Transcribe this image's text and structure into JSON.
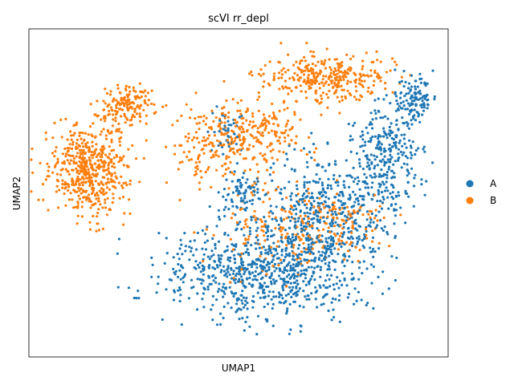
{
  "chart_data": {
    "type": "scatter",
    "title": "scVI rr_depl",
    "xlabel": "UMAP1",
    "ylabel": "UMAP2",
    "xlim": [
      -6,
      8
    ],
    "ylim": [
      -6,
      6
    ],
    "grid": false,
    "legend_placement": "right-outside",
    "series": [
      {
        "name": "A",
        "color": "#1f77b4",
        "regions": [
          {
            "cx": 1.6,
            "cy": -2.9,
            "rx": 2.9,
            "ry": 1.5,
            "n": 680
          },
          {
            "cx": 3.8,
            "cy": -1.0,
            "rx": 1.9,
            "ry": 2.2,
            "n": 520
          },
          {
            "cx": 5.9,
            "cy": 1.2,
            "rx": 1.0,
            "ry": 2.1,
            "n": 300
          },
          {
            "cx": 6.9,
            "cy": 3.4,
            "rx": 0.6,
            "ry": 0.7,
            "n": 120
          },
          {
            "cx": 0.5,
            "cy": 2.3,
            "rx": 0.6,
            "ry": 0.8,
            "n": 40
          },
          {
            "cx": 1.2,
            "cy": 0.0,
            "rx": 0.7,
            "ry": 0.9,
            "n": 80
          }
        ]
      },
      {
        "name": "B",
        "color": "#ff7f0e",
        "regions": [
          {
            "cx": -4.0,
            "cy": 0.8,
            "rx": 1.2,
            "ry": 1.6,
            "n": 520
          },
          {
            "cx": -2.7,
            "cy": 3.2,
            "rx": 0.8,
            "ry": 0.6,
            "n": 150
          },
          {
            "cx": 1.3,
            "cy": 2.0,
            "rx": 1.6,
            "ry": 1.3,
            "n": 280
          },
          {
            "cx": 4.0,
            "cy": 4.2,
            "rx": 1.9,
            "ry": 0.8,
            "n": 330
          },
          {
            "cx": 2.4,
            "cy": -1.5,
            "rx": 1.8,
            "ry": 1.2,
            "n": 140
          },
          {
            "cx": 4.3,
            "cy": -1.0,
            "rx": 1.5,
            "ry": 1.0,
            "n": 110
          },
          {
            "cx": -0.3,
            "cy": 1.6,
            "rx": 0.9,
            "ry": 1.3,
            "n": 70
          }
        ]
      }
    ]
  }
}
